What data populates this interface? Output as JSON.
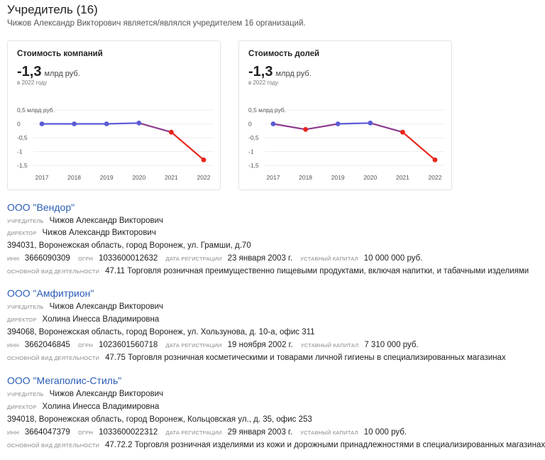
{
  "header": {
    "title": "Учредитель (16)",
    "subtitle": "Чижов Александр Викторович является/являлся учредителем 16 организаций."
  },
  "charts": [
    {
      "title": "Стоимость компаний",
      "value": "-1,3",
      "unit": "млрд руб.",
      "year_note": "в 2022 году"
    },
    {
      "title": "Стоимость долей",
      "value": "-1,3",
      "unit": "млрд руб.",
      "year_note": "в 2022 году"
    }
  ],
  "chart_data": [
    {
      "type": "line",
      "title": "Стоимость компаний",
      "x": [
        "2017",
        "2018",
        "2019",
        "2020",
        "2021",
        "2022"
      ],
      "values": [
        0.0,
        0.0,
        0.0,
        0.03,
        -0.3,
        -1.3
      ],
      "ytick_labels": [
        "0,5 млрд руб.",
        "0",
        "-0,5",
        "-1",
        "-1,5"
      ],
      "yticks": [
        0.5,
        0,
        -0.5,
        -1,
        -1.5
      ],
      "ylim": [
        -1.5,
        0.5
      ],
      "colors": {
        "positive": "#5b5bd6",
        "negative": "#e8261c",
        "transition": "#8e3a8e"
      }
    },
    {
      "type": "line",
      "title": "Стоимость долей",
      "x": [
        "2017",
        "2018",
        "2019",
        "2020",
        "2021",
        "2022"
      ],
      "values": [
        0.0,
        -0.2,
        0.0,
        0.03,
        -0.3,
        -1.3
      ],
      "ytick_labels": [
        "0,5 млрд руб.",
        "0",
        "-0,5",
        "-1",
        "-1,5"
      ],
      "yticks": [
        0.5,
        0,
        -0.5,
        -1,
        -1.5
      ],
      "ylim": [
        -1.5,
        0.5
      ],
      "colors": {
        "positive": "#5b5bd6",
        "negative": "#e8261c",
        "transition": "#8e3a8e"
      }
    }
  ],
  "labels": {
    "founder": "учредитель",
    "director": "директор",
    "inn": "инн",
    "ogrn": "огрн",
    "reg_date": "дата регистрации",
    "capital": "уставный капитал",
    "activity": "основной вид деятельности"
  },
  "orgs": [
    {
      "name": "ООО \"Вендор\"",
      "founder": "Чижов Александр Викторович",
      "director": "Чижов Александр Викторович",
      "address": "394031, Воронежская область, город Воронеж, ул. Грамши, д.70",
      "inn": "3666090309",
      "ogrn": "1033600012632",
      "reg_date": "23 января 2003 г.",
      "capital": "10 000 000 руб.",
      "activity": "47.11 Торговля розничная преимущественно пищевыми продуктами, включая напитки, и табачными изделиями"
    },
    {
      "name": "ООО \"Амфитрион\"",
      "founder": "Чижов Александр Викторович",
      "director": "Холина Инесса Владимировна",
      "address": "394068, Воронежская область, город Воронеж, ул. Хользунова, д. 10-а, офис 311",
      "inn": "3662046845",
      "ogrn": "1023601560718",
      "reg_date": "19 ноября 2002 г.",
      "capital": "7 310 000 руб.",
      "activity": "47.75 Торговля розничная косметическими и товарами личной гигиены в специализированных магазинах"
    },
    {
      "name": "ООО \"Мегаполис-Стиль\"",
      "founder": "Чижов Александр Викторович",
      "director": "Холина Инесса Владимировна",
      "address": "394018, Воронежская область, город Воронеж, Кольцовская ул., д. 35, офис 253",
      "inn": "3664047379",
      "ogrn": "1033600022312",
      "reg_date": "29 января 2003 г.",
      "capital": "10 000 руб.",
      "activity": "47.72.2 Торговля розничная изделиями из кожи и дорожными принадлежностями в специализированных магазинах"
    }
  ]
}
